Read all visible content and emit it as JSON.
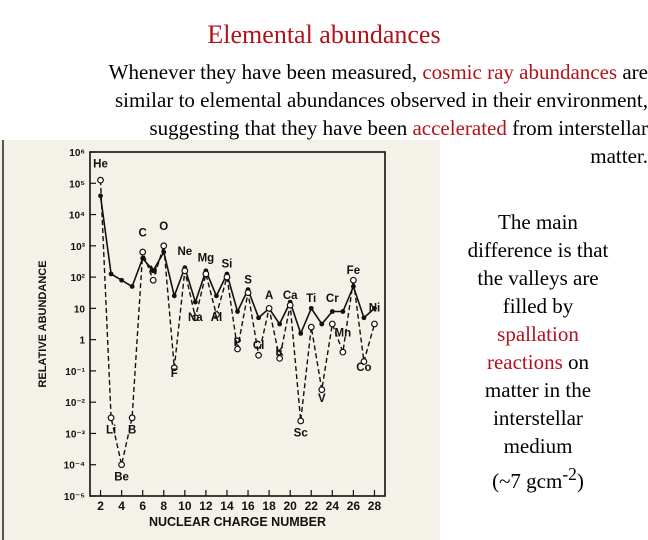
{
  "slide": {
    "title": "Elemental abundances",
    "intro": {
      "line1_a": "Whenever they have been measured, ",
      "line1_b": "cosmic ray abundances",
      "line1_c": " are",
      "line2": "similar to elemental abundances observed in their environment,",
      "line3_a": "suggesting that they have been ",
      "line3_b": "accelerated",
      "line3_c": " from interstellar",
      "line4": "matter."
    },
    "side": {
      "l1": "The main",
      "l2": "difference is that",
      "l3": "the valleys are",
      "l4": "filled by",
      "l5": "spallation",
      "l6_a": "reactions",
      "l6_b": " on",
      "l7": "matter in the",
      "l8": "interstellar",
      "l9": "medium",
      "l10_a": "(~7 gcm",
      "l10_sup": "-2",
      "l10_b": ")"
    },
    "colors": {
      "accent": "#b3121c"
    }
  },
  "chart_data": {
    "type": "line",
    "xlabel": "NUCLEAR CHARGE NUMBER",
    "ylabel": "RELATIVE ABUNDANCE",
    "x_ticks": [
      2,
      4,
      6,
      8,
      10,
      12,
      14,
      16,
      18,
      20,
      22,
      24,
      26,
      28
    ],
    "y_tick_labels": [
      "10⁶",
      "10⁵",
      "10⁴",
      "10³",
      "10²",
      "10",
      "1",
      "10⁻¹",
      "10⁻²",
      "10⁻³",
      "10⁻⁴",
      "10⁻⁵"
    ],
    "y_range_log10": [
      -5,
      6
    ],
    "x_range": [
      1,
      29
    ],
    "element_labels": [
      {
        "text": "He",
        "z": 2,
        "logy": 5.5
      },
      {
        "text": "Li",
        "z": 3,
        "logy": -3.0
      },
      {
        "text": "Be",
        "z": 4,
        "logy": -4.5
      },
      {
        "text": "B",
        "z": 5,
        "logy": -3.0
      },
      {
        "text": "C",
        "z": 6,
        "logy": 3.3
      },
      {
        "text": "N",
        "z": 7,
        "logy": 2.1
      },
      {
        "text": "O",
        "z": 8,
        "logy": 3.5
      },
      {
        "text": "F",
        "z": 9,
        "logy": -1.2
      },
      {
        "text": "Ne",
        "z": 10,
        "logy": 2.7
      },
      {
        "text": "Na",
        "z": 11,
        "logy": 0.6
      },
      {
        "text": "Mg",
        "z": 12,
        "logy": 2.5
      },
      {
        "text": "Al",
        "z": 13,
        "logy": 0.6
      },
      {
        "text": "Si",
        "z": 14,
        "logy": 2.3
      },
      {
        "text": "P",
        "z": 15,
        "logy": -0.2
      },
      {
        "text": "S",
        "z": 16,
        "logy": 1.8
      },
      {
        "text": "Cl",
        "z": 17,
        "logy": -0.3
      },
      {
        "text": "A",
        "z": 18,
        "logy": 1.3
      },
      {
        "text": "K",
        "z": 19,
        "logy": -0.5
      },
      {
        "text": "Ca",
        "z": 20,
        "logy": 1.3
      },
      {
        "text": "Sc",
        "z": 21,
        "logy": -3.1
      },
      {
        "text": "Ti",
        "z": 22,
        "logy": 1.2
      },
      {
        "text": "V",
        "z": 23,
        "logy": -2.0
      },
      {
        "text": "Cr",
        "z": 24,
        "logy": 1.2
      },
      {
        "text": "Mn",
        "z": 25,
        "logy": 0.1
      },
      {
        "text": "Fe",
        "z": 26,
        "logy": 2.1
      },
      {
        "text": "Co",
        "z": 27,
        "logy": -1.0
      },
      {
        "text": "Ni",
        "z": 28,
        "logy": 0.9
      }
    ],
    "series": [
      {
        "style": "solid",
        "points": [
          [
            2,
            4.6
          ],
          [
            3,
            2.1
          ],
          [
            4,
            1.9
          ],
          [
            5,
            1.7
          ],
          [
            6,
            2.6
          ],
          [
            7,
            2.2
          ],
          [
            8,
            2.8
          ],
          [
            9,
            1.4
          ],
          [
            10,
            2.3
          ],
          [
            11,
            1.2
          ],
          [
            12,
            2.2
          ],
          [
            13,
            1.4
          ],
          [
            14,
            2.1
          ],
          [
            15,
            0.9
          ],
          [
            16,
            1.6
          ],
          [
            17,
            0.7
          ],
          [
            18,
            1.0
          ],
          [
            19,
            0.5
          ],
          [
            20,
            1.2
          ],
          [
            21,
            0.2
          ],
          [
            22,
            1.0
          ],
          [
            23,
            0.5
          ],
          [
            24,
            0.9
          ],
          [
            25,
            0.9
          ],
          [
            26,
            1.7
          ],
          [
            27,
            0.7
          ],
          [
            28,
            1.0
          ]
        ]
      },
      {
        "style": "dashed",
        "points": [
          [
            2,
            5.1
          ],
          [
            3,
            -2.5
          ],
          [
            4,
            -4.0
          ],
          [
            5,
            -2.5
          ],
          [
            6,
            2.8
          ],
          [
            7,
            1.9
          ],
          [
            8,
            3.0
          ],
          [
            9,
            -0.9
          ],
          [
            10,
            2.2
          ],
          [
            11,
            0.7
          ],
          [
            12,
            2.1
          ],
          [
            13,
            0.8
          ],
          [
            14,
            2.0
          ],
          [
            15,
            -0.3
          ],
          [
            16,
            1.5
          ],
          [
            17,
            -0.5
          ],
          [
            18,
            1.0
          ],
          [
            19,
            -0.6
          ],
          [
            20,
            1.1
          ],
          [
            21,
            -2.6
          ],
          [
            22,
            0.4
          ],
          [
            23,
            -1.6
          ],
          [
            24,
            0.5
          ],
          [
            25,
            -0.4
          ],
          [
            26,
            1.9
          ],
          [
            27,
            -0.7
          ],
          [
            28,
            0.5
          ]
        ]
      }
    ]
  }
}
